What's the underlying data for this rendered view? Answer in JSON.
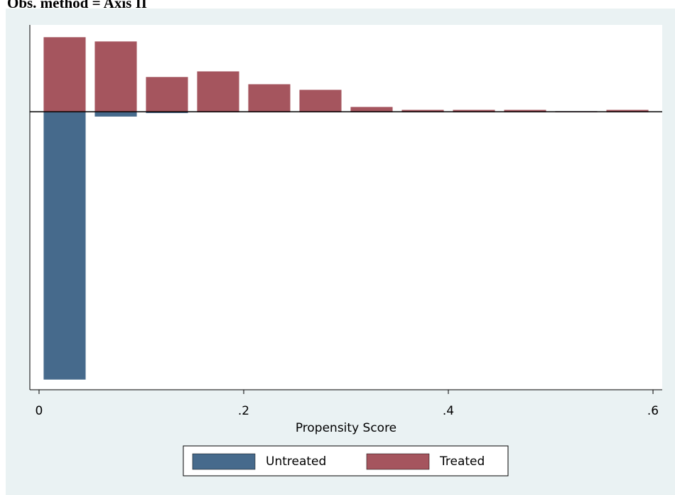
{
  "chart_data": {
    "type": "histogram",
    "title": "Obs. method = Axis II",
    "x_label": "Propensity Score",
    "bins": [
      0,
      0.05,
      0.1,
      0.15,
      0.2,
      0.25,
      0.3,
      0.35,
      0.4,
      0.45,
      0.5,
      0.55,
      0.6
    ],
    "series": [
      {
        "name": "Untreated",
        "color": "#466a8c",
        "values": [
          -1,
          -0.016,
          -0.003,
          0,
          0,
          0,
          0,
          0,
          0,
          0,
          0,
          0
        ]
      },
      {
        "name": "Treated",
        "color": "#a5555e",
        "values": [
          0.277,
          0.261,
          0.128,
          0.149,
          0.101,
          0.08,
          0.016,
          0.005,
          0.005,
          0.005,
          0,
          0.005
        ]
      }
    ],
    "xlim": [
      -0.009,
      0.609
    ],
    "xticks": [
      0,
      {
        "value": 0.2,
        "label": ".2"
      },
      {
        "value": 0.4,
        "label": ".4"
      },
      {
        "value": 0.6,
        "label": ".6"
      }
    ],
    "ylim": [
      -1.04,
      0.325
    ]
  }
}
